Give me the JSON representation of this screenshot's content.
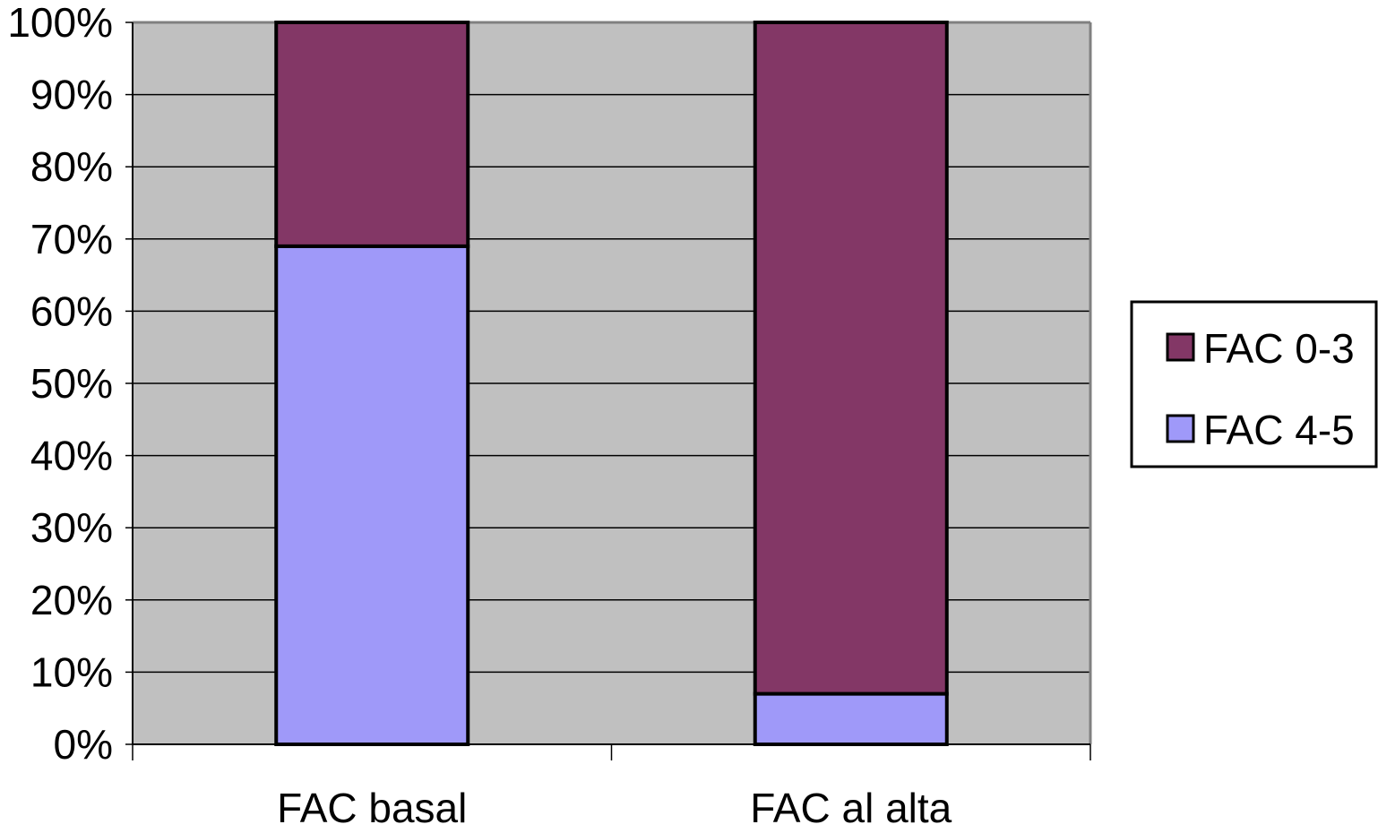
{
  "chart_data": {
    "type": "bar",
    "stacked": true,
    "percent_stacked": true,
    "categories": [
      "FAC basal",
      "FAC al alta"
    ],
    "series": [
      {
        "name": "FAC 4-5",
        "values": [
          69,
          7
        ],
        "color": "#9f99f9"
      },
      {
        "name": "FAC 0-3",
        "values": [
          31,
          93
        ],
        "color": "#833766"
      }
    ],
    "legend_order": [
      "FAC 0-3",
      "FAC 4-5"
    ],
    "y_ticks": [
      "0%",
      "10%",
      "20%",
      "30%",
      "40%",
      "50%",
      "60%",
      "70%",
      "80%",
      "90%",
      "100%"
    ],
    "ylim": [
      0,
      100
    ],
    "grid": true,
    "legend_position": "right",
    "plot_background": "#c0c0c0",
    "title": "",
    "xlabel": "",
    "ylabel": ""
  }
}
